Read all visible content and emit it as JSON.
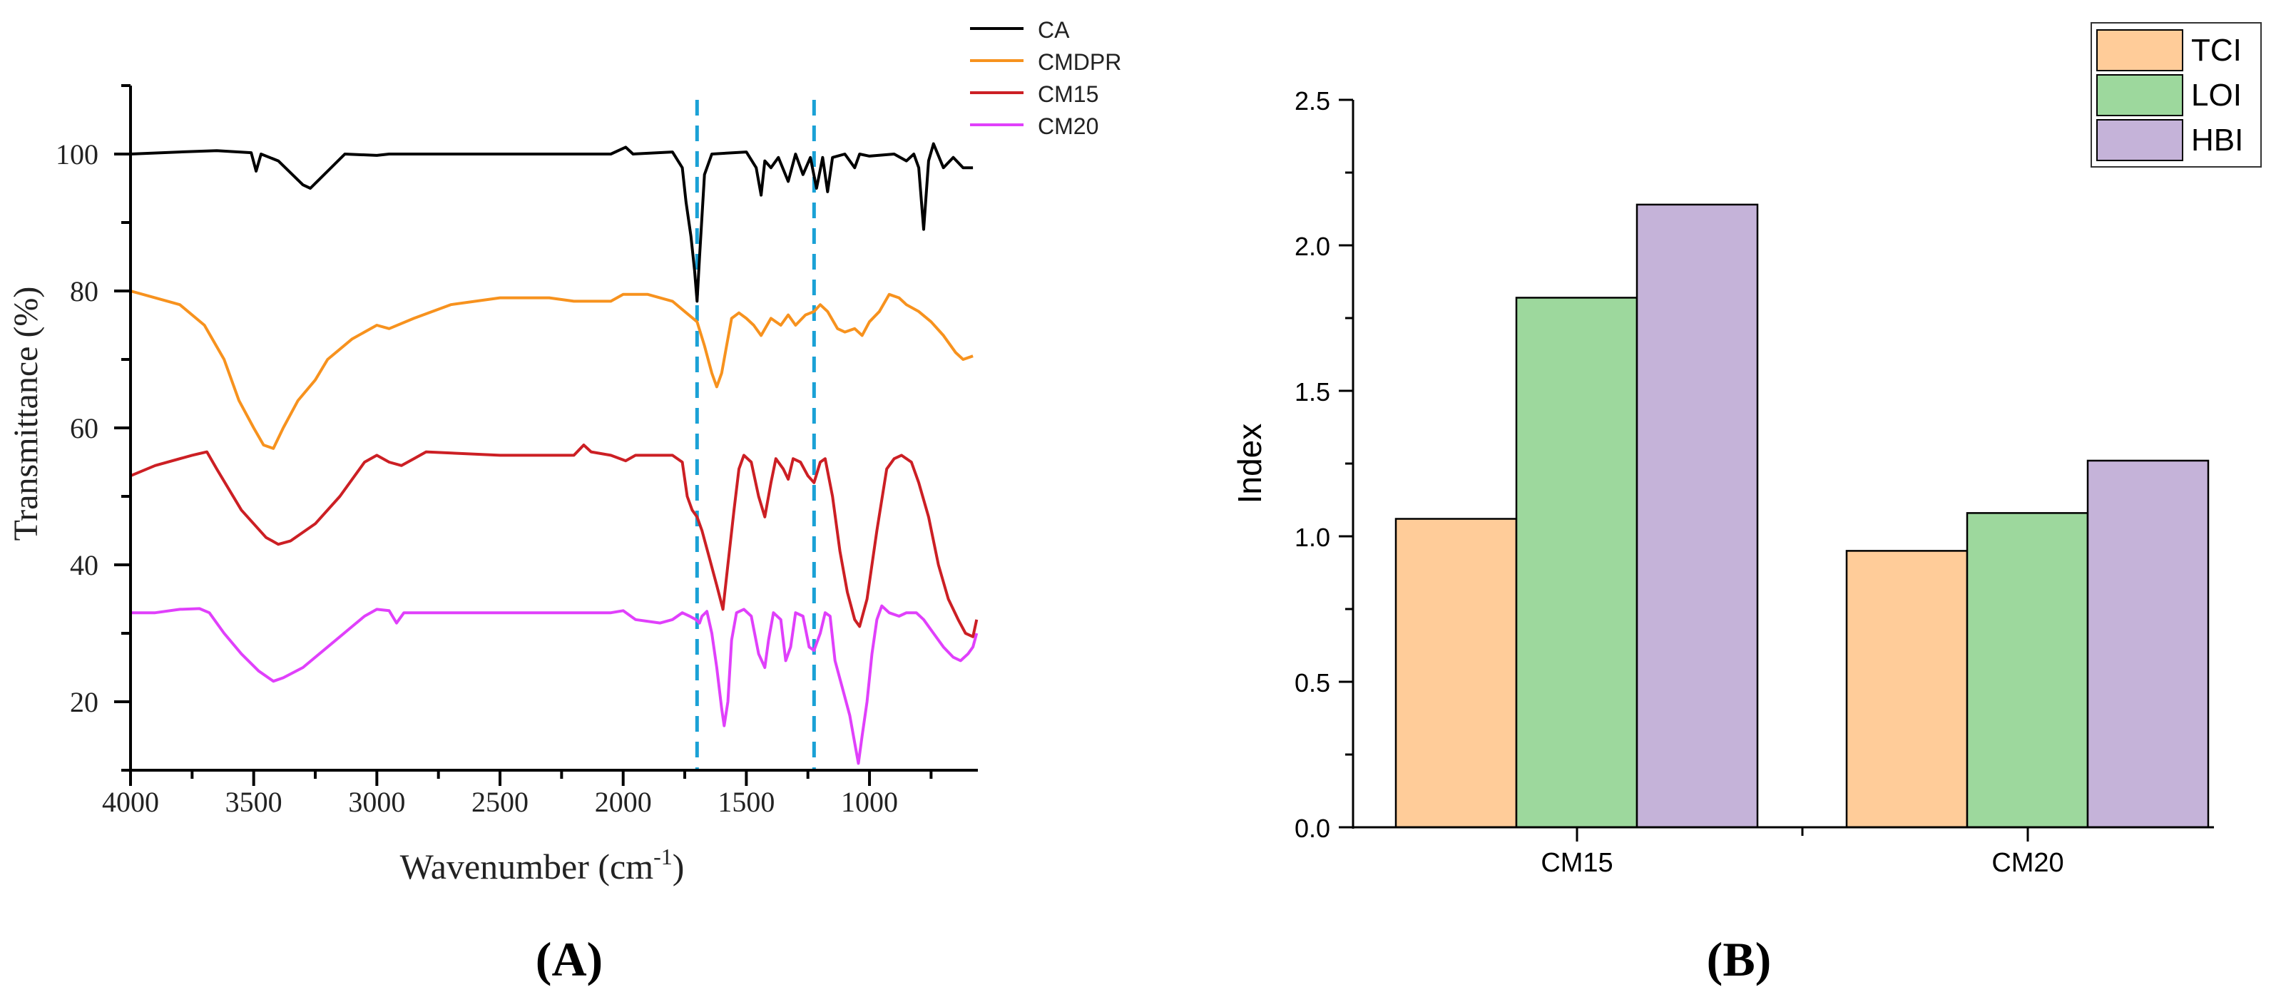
{
  "colors": {
    "CA": "#000000",
    "CMDPR": "#f7921e",
    "CM15": "#cc1f24",
    "CM20": "#e040fb",
    "dashed": "#1aa1d6",
    "TCI": "#ffcc99",
    "LOI": "#9dd89d",
    "HBI": "#c5b3d9"
  },
  "chart_data": [
    {
      "id": "A",
      "type": "line",
      "panel_label": "A",
      "xlabel_main": "Wavenumber (cm",
      "xlabel_sup": "-1",
      "xlabel_end": ")",
      "ylabel": "Transmittance (%)",
      "xlim": [
        4000,
        560
      ],
      "ylim": [
        10,
        110
      ],
      "x_ticks": [
        4000,
        3500,
        3000,
        2500,
        2000,
        1500,
        1000
      ],
      "y_ticks": [
        20,
        40,
        60,
        80,
        100
      ],
      "reference_lines": [
        1700,
        1225
      ],
      "legend": [
        "CA",
        "CMDPR",
        "CM15",
        "CM20"
      ],
      "series": [
        {
          "name": "CA",
          "points": [
            [
              4000,
              100
            ],
            [
              3800,
              100.3
            ],
            [
              3650,
              100.5
            ],
            [
              3510,
              100.2
            ],
            [
              3490,
              97.5
            ],
            [
              3470,
              100
            ],
            [
              3400,
              99
            ],
            [
              3300,
              95.5
            ],
            [
              3270,
              95
            ],
            [
              3200,
              97.5
            ],
            [
              3130,
              100
            ],
            [
              3000,
              99.8
            ],
            [
              2950,
              100
            ],
            [
              2500,
              100
            ],
            [
              2050,
              100
            ],
            [
              1990,
              101
            ],
            [
              1960,
              100
            ],
            [
              1800,
              100.3
            ],
            [
              1760,
              98
            ],
            [
              1745,
              93
            ],
            [
              1725,
              88
            ],
            [
              1710,
              83
            ],
            [
              1700,
              78.5
            ],
            [
              1690,
              85
            ],
            [
              1670,
              97
            ],
            [
              1640,
              100
            ],
            [
              1500,
              100.3
            ],
            [
              1460,
              98
            ],
            [
              1440,
              94
            ],
            [
              1425,
              99
            ],
            [
              1400,
              98
            ],
            [
              1370,
              99.5
            ],
            [
              1330,
              96
            ],
            [
              1300,
              100
            ],
            [
              1270,
              97
            ],
            [
              1240,
              99.5
            ],
            [
              1215,
              95
            ],
            [
              1190,
              99.5
            ],
            [
              1170,
              94.5
            ],
            [
              1150,
              99.5
            ],
            [
              1100,
              100
            ],
            [
              1060,
              98
            ],
            [
              1040,
              100
            ],
            [
              1000,
              99.7
            ],
            [
              900,
              100
            ],
            [
              850,
              99
            ],
            [
              820,
              100
            ],
            [
              800,
              98
            ],
            [
              780,
              89
            ],
            [
              760,
              99
            ],
            [
              740,
              101.5
            ],
            [
              700,
              98
            ],
            [
              660,
              99.5
            ],
            [
              620,
              98
            ],
            [
              580,
              98
            ]
          ]
        },
        {
          "name": "CMDPR",
          "points": [
            [
              4000,
              80
            ],
            [
              3900,
              79
            ],
            [
              3800,
              78
            ],
            [
              3700,
              75
            ],
            [
              3620,
              70
            ],
            [
              3560,
              64
            ],
            [
              3500,
              60
            ],
            [
              3460,
              57.5
            ],
            [
              3420,
              57
            ],
            [
              3380,
              60
            ],
            [
              3320,
              64
            ],
            [
              3250,
              67
            ],
            [
              3200,
              70
            ],
            [
              3100,
              73
            ],
            [
              3000,
              75
            ],
            [
              2950,
              74.5
            ],
            [
              2850,
              76
            ],
            [
              2700,
              78
            ],
            [
              2500,
              79
            ],
            [
              2300,
              79
            ],
            [
              2200,
              78.5
            ],
            [
              2050,
              78.5
            ],
            [
              2000,
              79.5
            ],
            [
              1900,
              79.5
            ],
            [
              1800,
              78.5
            ],
            [
              1750,
              77
            ],
            [
              1700,
              75.5
            ],
            [
              1670,
              72
            ],
            [
              1640,
              68
            ],
            [
              1620,
              66
            ],
            [
              1600,
              68
            ],
            [
              1580,
              72
            ],
            [
              1560,
              76
            ],
            [
              1530,
              76.8
            ],
            [
              1500,
              76
            ],
            [
              1470,
              75
            ],
            [
              1440,
              73.5
            ],
            [
              1400,
              76
            ],
            [
              1360,
              75
            ],
            [
              1330,
              76.5
            ],
            [
              1300,
              75
            ],
            [
              1260,
              76.5
            ],
            [
              1225,
              77
            ],
            [
              1200,
              78
            ],
            [
              1170,
              77
            ],
            [
              1130,
              74.5
            ],
            [
              1100,
              74
            ],
            [
              1060,
              74.5
            ],
            [
              1030,
              73.5
            ],
            [
              1000,
              75.5
            ],
            [
              960,
              77
            ],
            [
              920,
              79.5
            ],
            [
              880,
              79
            ],
            [
              850,
              78
            ],
            [
              800,
              77
            ],
            [
              750,
              75.5
            ],
            [
              700,
              73.5
            ],
            [
              650,
              71
            ],
            [
              620,
              70
            ],
            [
              580,
              70.5
            ]
          ]
        },
        {
          "name": "CM15",
          "points": [
            [
              4000,
              53
            ],
            [
              3900,
              54.5
            ],
            [
              3750,
              56
            ],
            [
              3690,
              56.5
            ],
            [
              3650,
              54
            ],
            [
              3550,
              48
            ],
            [
              3450,
              44
            ],
            [
              3400,
              43
            ],
            [
              3350,
              43.5
            ],
            [
              3250,
              46
            ],
            [
              3150,
              50
            ],
            [
              3050,
              55
            ],
            [
              3000,
              56
            ],
            [
              2950,
              55
            ],
            [
              2900,
              54.5
            ],
            [
              2850,
              55.5
            ],
            [
              2800,
              56.5
            ],
            [
              2500,
              56
            ],
            [
              2200,
              56
            ],
            [
              2160,
              57.5
            ],
            [
              2130,
              56.5
            ],
            [
              2050,
              56
            ],
            [
              1990,
              55.2
            ],
            [
              1950,
              56
            ],
            [
              1800,
              56
            ],
            [
              1760,
              55
            ],
            [
              1740,
              50
            ],
            [
              1720,
              48
            ],
            [
              1700,
              47
            ],
            [
              1680,
              45
            ],
            [
              1650,
              41
            ],
            [
              1620,
              37
            ],
            [
              1595,
              33.5
            ],
            [
              1575,
              40
            ],
            [
              1550,
              48
            ],
            [
              1530,
              54
            ],
            [
              1510,
              56
            ],
            [
              1480,
              55
            ],
            [
              1450,
              50
            ],
            [
              1425,
              47
            ],
            [
              1400,
              52
            ],
            [
              1380,
              55.5
            ],
            [
              1350,
              54
            ],
            [
              1330,
              52.5
            ],
            [
              1310,
              55.5
            ],
            [
              1280,
              55
            ],
            [
              1250,
              53
            ],
            [
              1225,
              52
            ],
            [
              1200,
              55
            ],
            [
              1180,
              55.5
            ],
            [
              1150,
              50
            ],
            [
              1120,
              42
            ],
            [
              1090,
              36
            ],
            [
              1060,
              32
            ],
            [
              1040,
              31
            ],
            [
              1010,
              35
            ],
            [
              970,
              45
            ],
            [
              930,
              54
            ],
            [
              900,
              55.5
            ],
            [
              870,
              56
            ],
            [
              830,
              55
            ],
            [
              800,
              52
            ],
            [
              760,
              47
            ],
            [
              720,
              40
            ],
            [
              680,
              35
            ],
            [
              640,
              32
            ],
            [
              610,
              30
            ],
            [
              580,
              29.5
            ],
            [
              565,
              32
            ]
          ]
        },
        {
          "name": "CM20",
          "points": [
            [
              4000,
              33
            ],
            [
              3900,
              33
            ],
            [
              3800,
              33.5
            ],
            [
              3720,
              33.6
            ],
            [
              3680,
              33
            ],
            [
              3620,
              30
            ],
            [
              3550,
              27
            ],
            [
              3480,
              24.5
            ],
            [
              3420,
              23
            ],
            [
              3380,
              23.5
            ],
            [
              3300,
              25
            ],
            [
              3200,
              28
            ],
            [
              3100,
              31
            ],
            [
              3050,
              32.5
            ],
            [
              3000,
              33.5
            ],
            [
              2950,
              33.3
            ],
            [
              2920,
              31.5
            ],
            [
              2890,
              33
            ],
            [
              2800,
              33
            ],
            [
              2500,
              33
            ],
            [
              2200,
              33
            ],
            [
              2050,
              33
            ],
            [
              2000,
              33.3
            ],
            [
              1950,
              32
            ],
            [
              1850,
              31.5
            ],
            [
              1800,
              32
            ],
            [
              1760,
              33
            ],
            [
              1730,
              32.5
            ],
            [
              1705,
              32
            ],
            [
              1690,
              31.5
            ],
            [
              1680,
              32.5
            ],
            [
              1660,
              33.2
            ],
            [
              1640,
              30
            ],
            [
              1620,
              25
            ],
            [
              1600,
              19
            ],
            [
              1590,
              16.5
            ],
            [
              1575,
              20
            ],
            [
              1560,
              29
            ],
            [
              1540,
              33
            ],
            [
              1510,
              33.5
            ],
            [
              1480,
              32.5
            ],
            [
              1450,
              27
            ],
            [
              1425,
              25
            ],
            [
              1410,
              29
            ],
            [
              1390,
              33
            ],
            [
              1360,
              32
            ],
            [
              1340,
              26
            ],
            [
              1320,
              28
            ],
            [
              1300,
              33
            ],
            [
              1270,
              32.5
            ],
            [
              1245,
              28
            ],
            [
              1225,
              27.5
            ],
            [
              1200,
              30
            ],
            [
              1180,
              33
            ],
            [
              1160,
              32.5
            ],
            [
              1140,
              26
            ],
            [
              1110,
              22
            ],
            [
              1080,
              18
            ],
            [
              1060,
              14
            ],
            [
              1045,
              11
            ],
            [
              1030,
              15
            ],
            [
              1010,
              20
            ],
            [
              990,
              27
            ],
            [
              970,
              32
            ],
            [
              950,
              34
            ],
            [
              920,
              33
            ],
            [
              880,
              32.5
            ],
            [
              850,
              33
            ],
            [
              810,
              33
            ],
            [
              780,
              32
            ],
            [
              740,
              30
            ],
            [
              700,
              28
            ],
            [
              660,
              26.5
            ],
            [
              630,
              26
            ],
            [
              600,
              27
            ],
            [
              580,
              28
            ],
            [
              565,
              30
            ]
          ]
        }
      ]
    },
    {
      "id": "B",
      "type": "bar",
      "panel_label": "B",
      "ylabel": "Index",
      "xlabel": "",
      "categories": [
        "CM15",
        "CM20"
      ],
      "ylim": [
        0,
        2.5
      ],
      "y_ticks": [
        "0.0",
        "0.5",
        "1.0",
        "1.5",
        "2.0",
        "2.5"
      ],
      "legend": [
        "TCI",
        "LOI",
        "HBI"
      ],
      "series": [
        {
          "name": "TCI",
          "values": [
            1.06,
            0.95
          ]
        },
        {
          "name": "LOI",
          "values": [
            1.82,
            1.08
          ]
        },
        {
          "name": "HBI",
          "values": [
            2.14,
            1.26
          ]
        }
      ]
    }
  ]
}
